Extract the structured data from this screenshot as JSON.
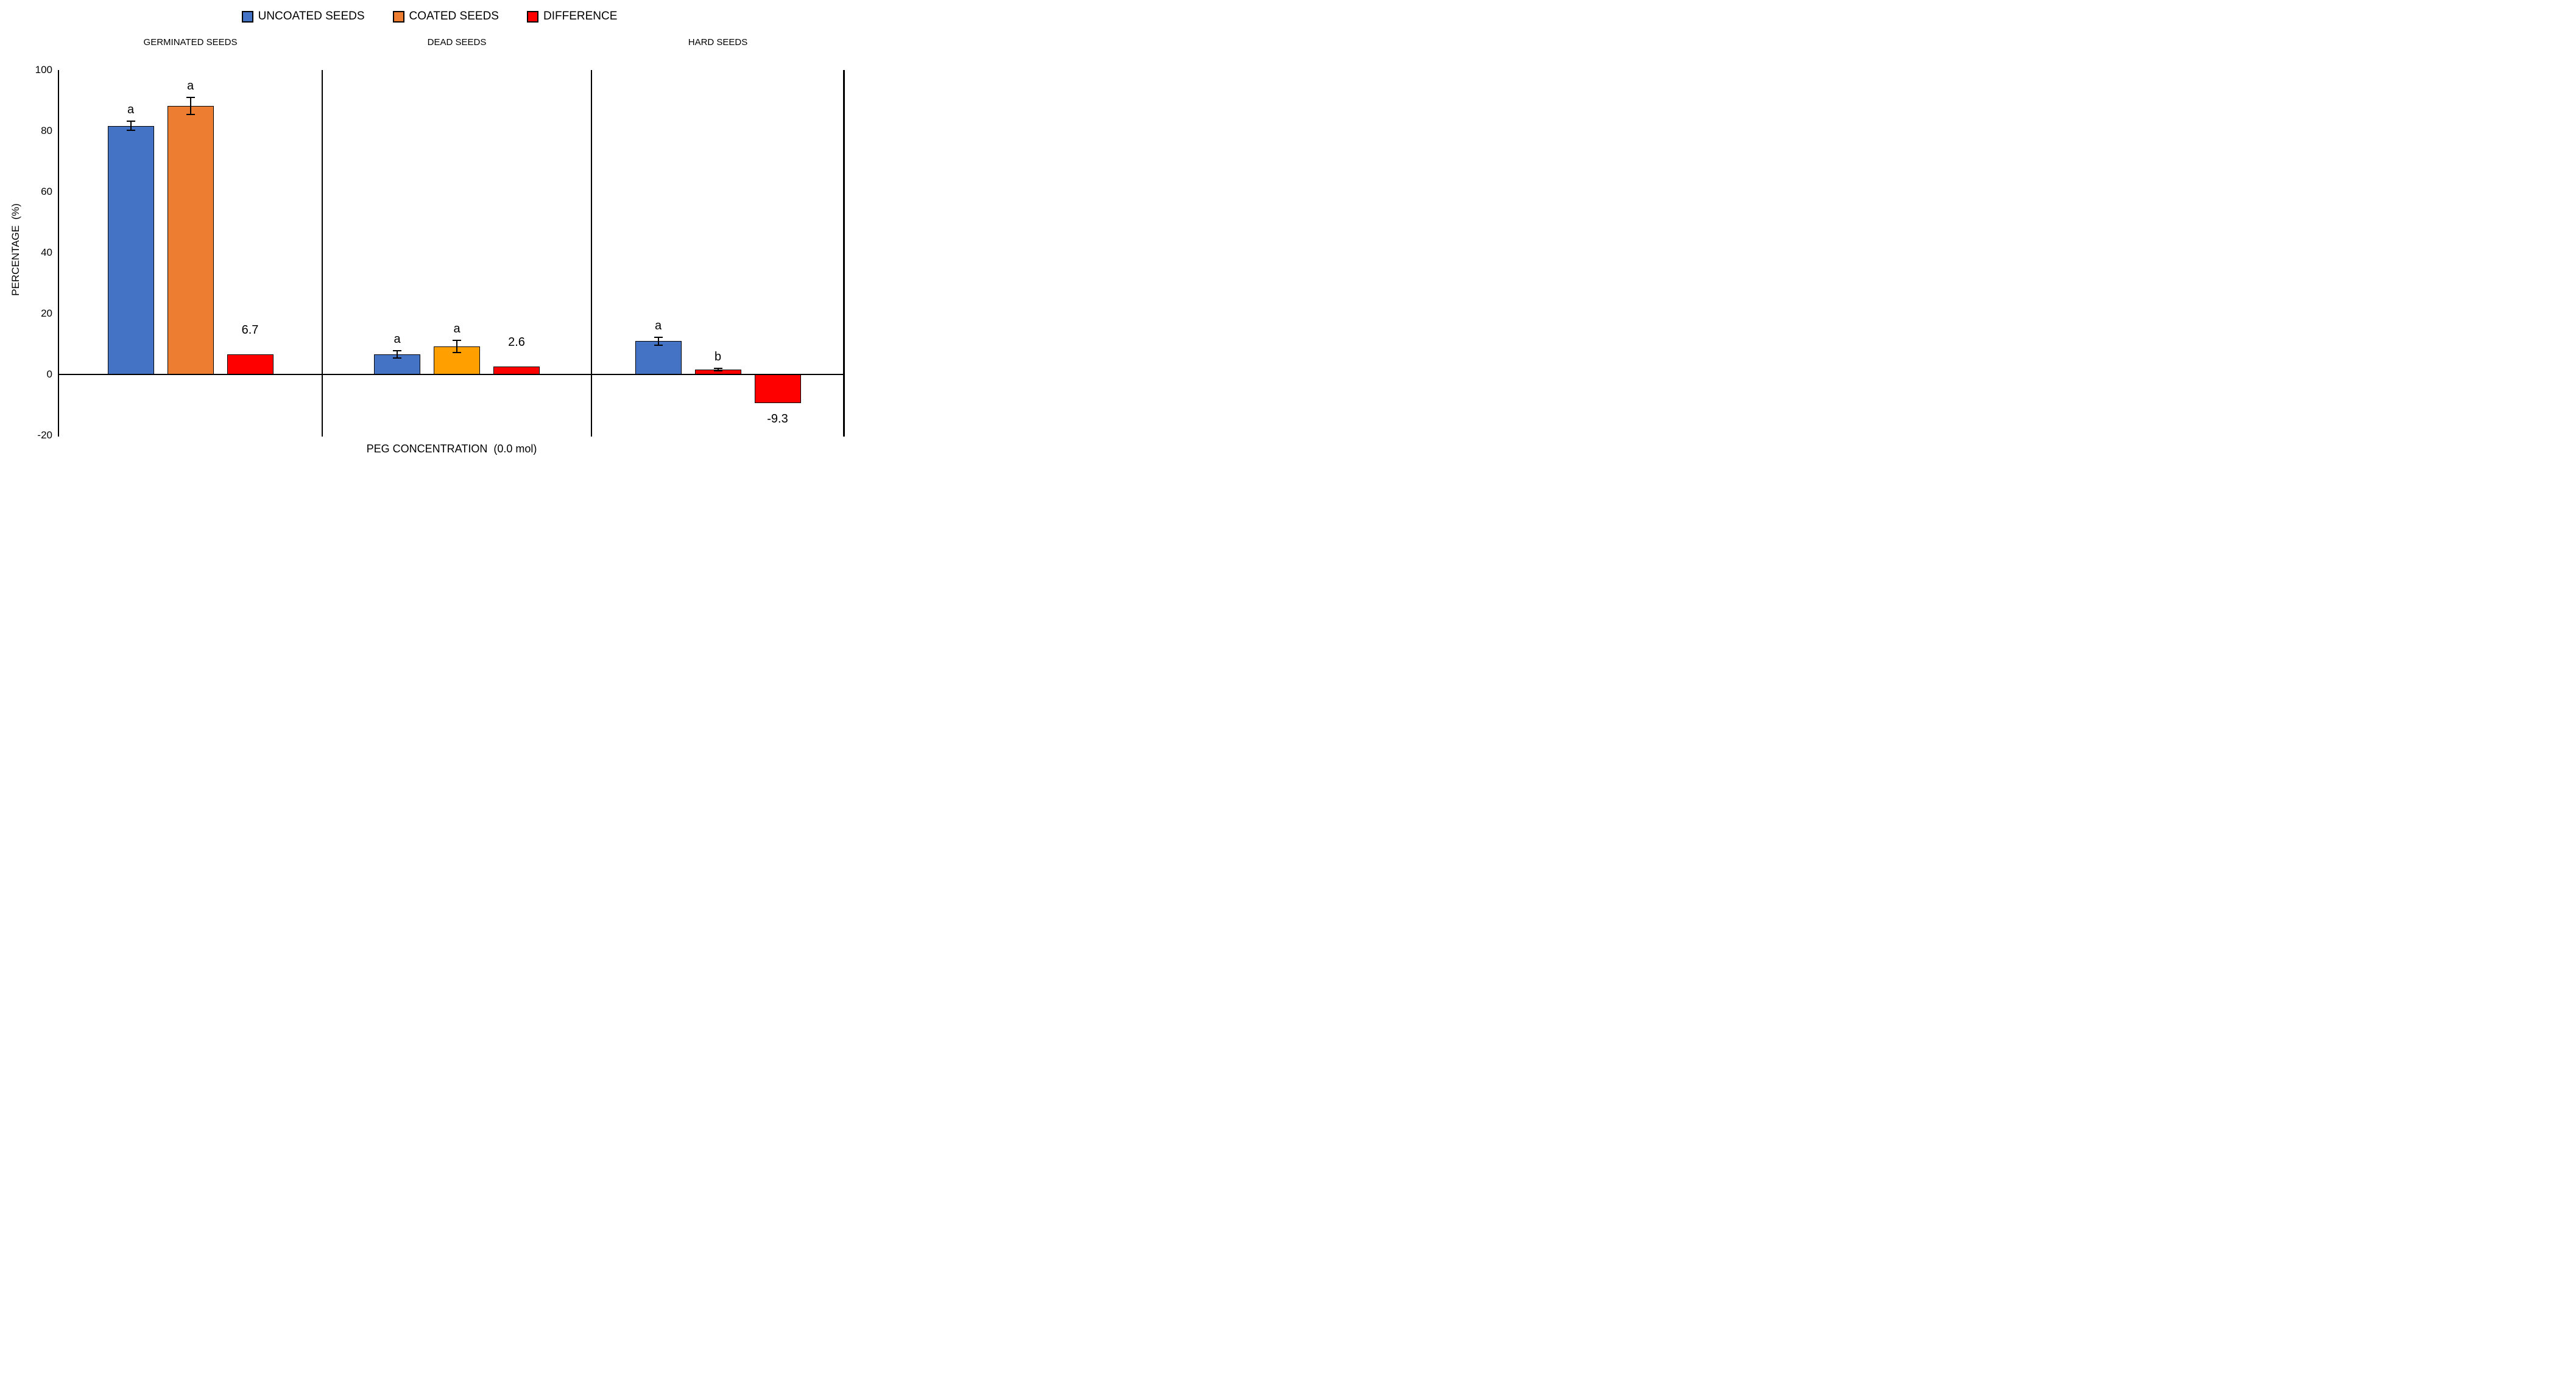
{
  "chart_data": {
    "type": "bar",
    "title": "",
    "xlabel": "PEG CONCENTRATION  (0.0 mol)",
    "ylabel": "PERCENTAGE  (%)",
    "ylim": [
      -20,
      100
    ],
    "yticks": [
      100,
      80,
      60,
      40,
      20,
      0,
      -20
    ],
    "grid": false,
    "legend_position": "top-center",
    "legend": [
      {
        "label": "UNCOATED SEEDS",
        "color": "#4472C4"
      },
      {
        "label": "COATED SEEDS",
        "color": "#ED7D31"
      },
      {
        "label": "DIFFERENCE",
        "color": "#FF0000"
      }
    ],
    "panels": [
      {
        "title": "GERMINATED SEEDS",
        "bars": [
          {
            "series": "UNCOATED SEEDS",
            "value": 81.7,
            "error": 1.5,
            "color": "#4472C4",
            "annotation": "a",
            "annotation_type": "significance"
          },
          {
            "series": "COATED SEEDS",
            "value": 88.3,
            "error": 2.8,
            "color": "#ED7D31",
            "annotation": "a",
            "annotation_type": "significance"
          },
          {
            "series": "DIFFERENCE",
            "value": 6.7,
            "error": 0,
            "color": "#FF0000",
            "annotation": "6.7",
            "annotation_type": "value"
          }
        ]
      },
      {
        "title": "DEAD SEEDS",
        "bars": [
          {
            "series": "UNCOATED SEEDS",
            "value": 6.7,
            "error": 1.2,
            "color": "#4472C4",
            "annotation": "a",
            "annotation_type": "significance"
          },
          {
            "series": "COATED SEEDS",
            "value": 9.3,
            "error": 2.0,
            "color": "#FFA000",
            "annotation": "a",
            "annotation_type": "significance"
          },
          {
            "series": "DIFFERENCE",
            "value": 2.6,
            "error": 0,
            "color": "#FF0000",
            "annotation": "2.6",
            "annotation_type": "value"
          }
        ]
      },
      {
        "title": "HARD SEEDS",
        "bars": [
          {
            "series": "UNCOATED SEEDS",
            "value": 11.0,
            "error": 1.3,
            "color": "#4472C4",
            "annotation": "a",
            "annotation_type": "significance"
          },
          {
            "series": "COATED SEEDS",
            "value": 1.7,
            "error": 0.4,
            "color": "#FF0000",
            "annotation": "b",
            "annotation_type": "significance"
          },
          {
            "series": "DIFFERENCE",
            "value": -9.3,
            "error": 0,
            "color": "#FF0000",
            "annotation": "-9.3",
            "annotation_type": "value"
          }
        ]
      }
    ]
  }
}
